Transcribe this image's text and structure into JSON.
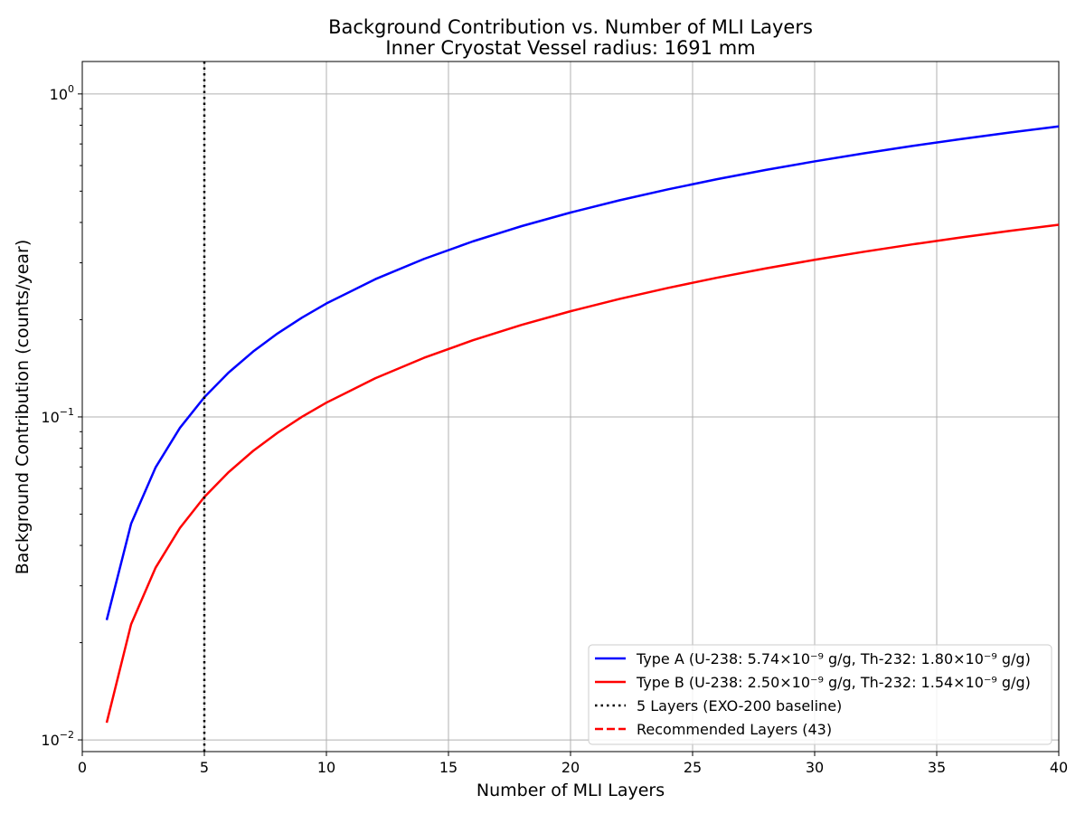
{
  "chart_data": {
    "type": "line",
    "title": "Background Contribution vs. Number of MLI Layers",
    "subtitle": "Inner Cryostat Vessel radius: 1691 mm",
    "xlabel": "Number of MLI Layers",
    "ylabel": "Background Contribution (counts/year)",
    "xlim": [
      0,
      40
    ],
    "ylim": [
      0.0092,
      1.26
    ],
    "yscale": "log",
    "grid": true,
    "legend_position": "lower-right",
    "x_ticks": [
      0,
      5,
      10,
      15,
      20,
      25,
      30,
      35,
      40
    ],
    "x_tick_labels": [
      "0",
      "5",
      "10",
      "15",
      "20",
      "25",
      "30",
      "35",
      "40"
    ],
    "y_ticks": [
      {
        "value": 0.01,
        "base": "10",
        "exp": "−2"
      },
      {
        "value": 0.1,
        "base": "10",
        "exp": "−1"
      },
      {
        "value": 1,
        "base": "10",
        "exp": "0"
      }
    ],
    "series": [
      {
        "name": "Type A (U-238: 5.74×10⁻⁹ g/g, Th-232: 1.80×10⁻⁹ g/g)",
        "color": "#0000ff",
        "style": "solid",
        "x": [
          1,
          2,
          3,
          4,
          5,
          6,
          7,
          8,
          9,
          10,
          12,
          14,
          16,
          18,
          20,
          22,
          24,
          26,
          28,
          30,
          32,
          34,
          36,
          38,
          40
        ],
        "y": [
          0.0235,
          0.0467,
          0.0697,
          0.0925,
          0.115,
          0.1373,
          0.1594,
          0.1813,
          0.203,
          0.2245,
          0.2669,
          0.3085,
          0.3495,
          0.3897,
          0.4293,
          0.4683,
          0.5066,
          0.5444,
          0.5816,
          0.6182,
          0.6543,
          0.6899,
          0.7249,
          0.7594,
          0.7935
        ]
      },
      {
        "name": "Type B (U-238: 2.50×10⁻⁹ g/g, Th-232: 1.54×10⁻⁹ g/g)",
        "color": "#ff0000",
        "style": "solid",
        "x": [
          1,
          2,
          3,
          4,
          5,
          6,
          7,
          8,
          9,
          10,
          12,
          14,
          16,
          18,
          20,
          22,
          24,
          26,
          28,
          30,
          32,
          34,
          36,
          38,
          40
        ],
        "y": [
          0.0113,
          0.0228,
          0.0341,
          0.0453,
          0.0565,
          0.0675,
          0.0785,
          0.0893,
          0.1001,
          0.1107,
          0.1317,
          0.1524,
          0.1727,
          0.1927,
          0.2124,
          0.2318,
          0.2509,
          0.2697,
          0.2882,
          0.3065,
          0.3244,
          0.3421,
          0.3595,
          0.3767,
          0.3936
        ]
      }
    ],
    "reference_lines": [
      {
        "name": "5 Layers (EXO-200 baseline)",
        "x": 5,
        "color": "#000000",
        "style": "dotted"
      },
      {
        "name": "Recommended Layers (43)",
        "x": 43,
        "color": "#ff0000",
        "style": "dashed"
      }
    ]
  }
}
